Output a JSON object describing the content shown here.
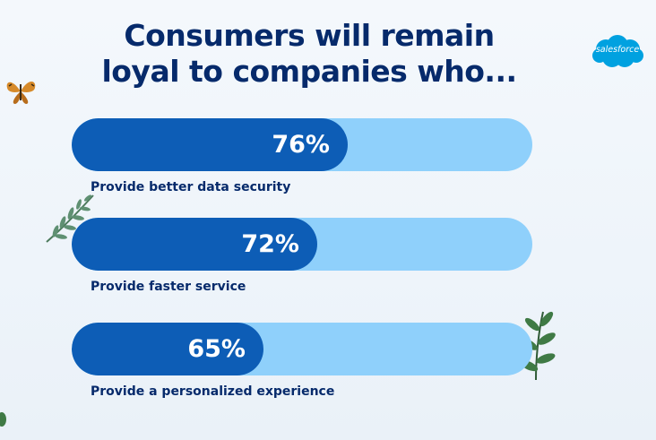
{
  "title_lines": [
    "Consumers will remain",
    "loyal to companies who..."
  ],
  "logo": {
    "text": "salesforce",
    "color": "#00a1e0"
  },
  "colors": {
    "fill": "#0d5db6",
    "track": "#8fd0fb",
    "title": "#062a6b"
  },
  "chart_data": {
    "type": "bar",
    "orientation": "horizontal",
    "categories": [
      "Provide better data security",
      "Provide faster service",
      "Provide a personalized experience"
    ],
    "values": [
      76,
      72,
      65
    ],
    "value_labels": [
      "76%",
      "72%",
      "65%"
    ],
    "xlim": [
      0,
      100
    ]
  }
}
